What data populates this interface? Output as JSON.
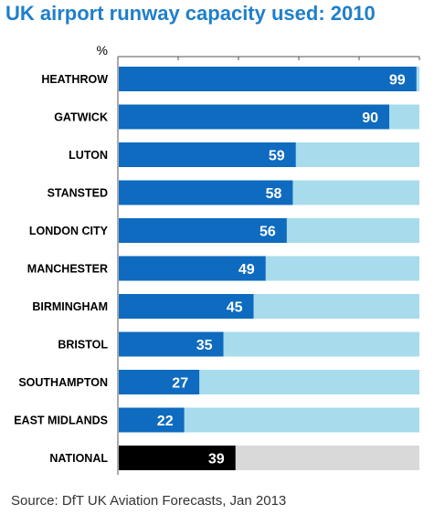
{
  "title": "UK airport runway capacity used: 2010",
  "source": "Source: DfT UK Aviation Forecasts, Jan 2013",
  "colors": {
    "title": "#1f7fc9",
    "bar_fill": "#0e6bbf",
    "bar_track": "#a8dcec",
    "national_fill": "#000000",
    "national_track": "#d9d9d9",
    "label_text": "#000000",
    "value_text": "#ffffff"
  },
  "chart_data": {
    "type": "bar",
    "orientation": "horizontal",
    "stacked_background": true,
    "unit_label": "%",
    "xlim": [
      0,
      100
    ],
    "categories": [
      "HEATHROW",
      "GATWICK",
      "LUTON",
      "STANSTED",
      "LONDON CITY",
      "MANCHESTER",
      "BIRMINGHAM",
      "BRISTOL",
      "SOUTHAMPTON",
      "EAST MIDLANDS",
      "NATIONAL"
    ],
    "values": [
      99,
      90,
      59,
      58,
      56,
      49,
      45,
      35,
      27,
      22,
      39
    ],
    "highlight": "NATIONAL"
  }
}
